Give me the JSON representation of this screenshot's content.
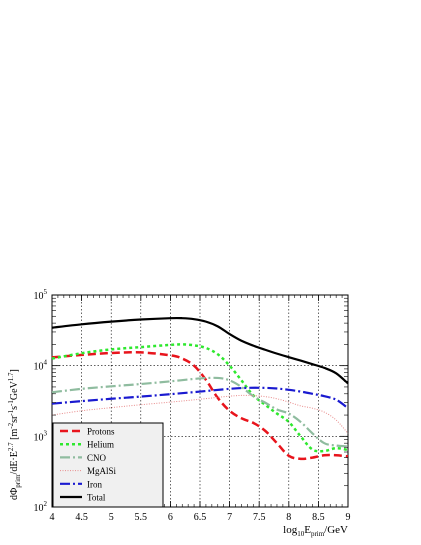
{
  "chart_data": {
    "type": "line",
    "title": "",
    "xlabel": "log₁₀E_prim/GeV",
    "xlabel_parts": {
      "pre": "log",
      "sub": "10",
      "mid": "E",
      "sub2": "prim",
      "post": "/GeV"
    },
    "ylabel": "dΦ_prim/dE·E^2.7 [m⁻²sr⁻¹s⁻¹GeV^1.7]",
    "ylabel_parts": {
      "a": "dΦ",
      "a_sub": "prim",
      "b": "/dE·E",
      "b_sup": "2.7",
      "c": " [m",
      "c_sup": "-2",
      "d": "sr",
      "d_sup": "-1",
      "e": "s",
      "e_sup": "-1",
      "f": "GeV",
      "f_sup": "1.7",
      "g": "]"
    },
    "xlim": [
      4,
      9
    ],
    "ylim_log10": [
      2,
      5
    ],
    "yscale": "log",
    "grid": true,
    "legend_position": "bottom-left",
    "x_ticks": [
      "4",
      "4.5",
      "5",
      "5.5",
      "6",
      "6.5",
      "7",
      "7.5",
      "8",
      "8.5",
      "9"
    ],
    "y_ticks": [
      {
        "base": "10",
        "exp": "2"
      },
      {
        "base": "10",
        "exp": "3"
      },
      {
        "base": "10",
        "exp": "4"
      },
      {
        "base": "10",
        "exp": "5"
      }
    ],
    "series": [
      {
        "name": "Protons",
        "color": "#e8141c",
        "dash": "dashed",
        "x": [
          4.0,
          4.5,
          5.0,
          5.5,
          6.0,
          6.2,
          6.4,
          6.6,
          6.8,
          7.0,
          7.2,
          7.4,
          7.6,
          7.8,
          8.0,
          8.2,
          8.4,
          8.6,
          8.8,
          9.0
        ],
        "y": [
          13100,
          14200,
          15100,
          15400,
          14000,
          12600,
          10000,
          6300,
          3500,
          2300,
          1800,
          1550,
          1200,
          800,
          530,
          480,
          500,
          540,
          540,
          520
        ]
      },
      {
        "name": "Helium",
        "color": "#2ee82e",
        "dash": "dotted",
        "x": [
          4.0,
          4.5,
          5.0,
          5.5,
          6.0,
          6.2,
          6.4,
          6.6,
          6.8,
          7.0,
          7.2,
          7.4,
          7.6,
          7.8,
          8.0,
          8.2,
          8.4,
          8.6,
          8.8,
          9.0
        ],
        "y": [
          12600,
          15000,
          17000,
          18300,
          19700,
          20000,
          19400,
          17800,
          14500,
          10000,
          6200,
          3800,
          2800,
          2100,
          1600,
          1000,
          650,
          620,
          680,
          640
        ]
      },
      {
        "name": "CNO",
        "color": "#8fbc9f",
        "dash": "dashdot",
        "x": [
          4.0,
          4.5,
          5.0,
          5.5,
          6.0,
          6.5,
          6.8,
          7.0,
          7.2,
          7.4,
          7.6,
          7.8,
          8.0,
          8.2,
          8.4,
          8.6,
          8.8,
          9.0
        ],
        "y": [
          4200,
          4700,
          5100,
          5500,
          6000,
          6600,
          6700,
          6200,
          5000,
          3700,
          3000,
          2400,
          2100,
          1600,
          1100,
          800,
          740,
          720
        ]
      },
      {
        "name": "MgAlSi",
        "color": "#e88a8a",
        "dash": "finedot",
        "x": [
          4.0,
          4.5,
          5.0,
          5.5,
          6.0,
          6.5,
          7.0,
          7.3,
          7.6,
          7.8,
          8.0,
          8.2,
          8.4,
          8.6,
          8.8,
          9.0
        ],
        "y": [
          2000,
          2300,
          2550,
          2800,
          3050,
          3350,
          3700,
          3800,
          3650,
          3400,
          3050,
          2700,
          2500,
          2200,
          1700,
          1100
        ]
      },
      {
        "name": "Iron",
        "color": "#1a1ad0",
        "dash": "dashdot",
        "x": [
          4.0,
          4.5,
          5.0,
          5.5,
          6.0,
          6.5,
          7.0,
          7.3,
          7.6,
          7.8,
          8.0,
          8.2,
          8.4,
          8.6,
          8.8,
          9.0
        ],
        "y": [
          2900,
          3150,
          3400,
          3650,
          3950,
          4300,
          4700,
          4850,
          4850,
          4750,
          4550,
          4300,
          4000,
          3700,
          3300,
          2500
        ]
      },
      {
        "name": "Total",
        "color": "#000000",
        "dash": "solid",
        "x": [
          4.0,
          4.5,
          5.0,
          5.5,
          6.0,
          6.2,
          6.4,
          6.6,
          6.8,
          7.0,
          7.2,
          7.4,
          7.6,
          7.8,
          8.0,
          8.2,
          8.4,
          8.6,
          8.8,
          9.0
        ],
        "y": [
          34500,
          38500,
          42000,
          45000,
          47000,
          47000,
          45500,
          42000,
          36000,
          28000,
          22500,
          19200,
          16800,
          14800,
          13200,
          11800,
          10500,
          9300,
          7800,
          5600
        ]
      }
    ]
  }
}
